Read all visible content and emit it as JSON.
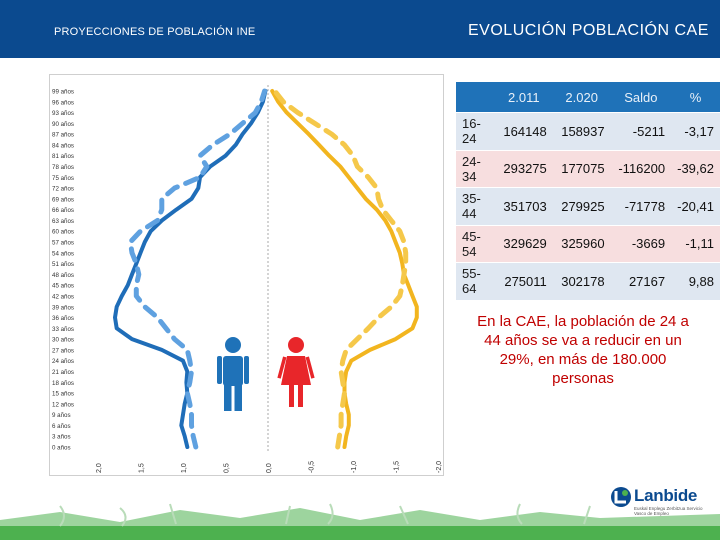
{
  "header": {
    "left_title": "PROYECCIONES DE POBLACIÓN INE",
    "right_title": "EVOLUCIÓN POBLACIÓN CAE"
  },
  "chart_data": {
    "type": "line",
    "title": "",
    "xlabel": "",
    "ylabel": "",
    "y_tick_labels": [
      "99 años",
      "96 años",
      "93 años",
      "90 años",
      "87 años",
      "84 años",
      "81 años",
      "78 años",
      "75 años",
      "72 años",
      "69 años",
      "66 años",
      "63 años",
      "60 años",
      "57 años",
      "54 años",
      "51 años",
      "48 años",
      "45 años",
      "42 años",
      "39 años",
      "36 años",
      "33 años",
      "30 años",
      "27 años",
      "24 años",
      "21 años",
      "18 años",
      "15 años",
      "12 años",
      "9 años",
      "6 años",
      "3 años",
      "0 años"
    ],
    "x_tick_labels": [
      "2,0",
      "1,5",
      "1,0",
      "0,5",
      "0,0",
      "-0,5",
      "-1,0",
      "-1,5",
      "-2,0"
    ],
    "xlim": [
      2.0,
      -2.0
    ],
    "ages": [
      0,
      3,
      6,
      9,
      12,
      15,
      18,
      21,
      24,
      27,
      30,
      33,
      36,
      39,
      42,
      45,
      48,
      51,
      54,
      57,
      60,
      63,
      66,
      69,
      72,
      75,
      78,
      81,
      84,
      87,
      90,
      93,
      96,
      99
    ],
    "series": [
      {
        "group": "men",
        "style": "solid",
        "color": "#1f6db8",
        "values": [
          0.95,
          0.98,
          1.02,
          1.0,
          0.98,
          0.95,
          0.96,
          0.95,
          1.0,
          1.25,
          1.6,
          1.78,
          1.8,
          1.78,
          1.72,
          1.65,
          1.6,
          1.55,
          1.5,
          1.45,
          1.38,
          1.25,
          1.08,
          0.9,
          0.82,
          0.8,
          0.68,
          0.5,
          0.38,
          0.3,
          0.2,
          0.12,
          0.06,
          0.03
        ]
      },
      {
        "group": "men",
        "style": "dashed",
        "color": "#5fa1e0",
        "values": [
          0.85,
          0.88,
          0.9,
          0.9,
          0.92,
          0.95,
          0.92,
          0.9,
          0.92,
          0.95,
          1.1,
          1.2,
          1.3,
          1.45,
          1.55,
          1.55,
          1.52,
          1.55,
          1.6,
          1.62,
          1.5,
          1.3,
          1.25,
          1.25,
          1.1,
          0.8,
          0.72,
          0.8,
          0.65,
          0.45,
          0.3,
          0.15,
          0.08,
          0.04
        ]
      },
      {
        "group": "women",
        "style": "solid",
        "color": "#f2b51f",
        "values": [
          -0.9,
          -0.92,
          -0.95,
          -0.95,
          -0.92,
          -0.9,
          -0.9,
          -0.92,
          -0.98,
          -1.2,
          -1.5,
          -1.7,
          -1.75,
          -1.75,
          -1.7,
          -1.65,
          -1.6,
          -1.58,
          -1.55,
          -1.5,
          -1.45,
          -1.38,
          -1.28,
          -1.15,
          -1.05,
          -0.95,
          -0.85,
          -0.72,
          -0.6,
          -0.48,
          -0.35,
          -0.22,
          -0.12,
          -0.05
        ]
      },
      {
        "group": "women",
        "style": "dashed",
        "color": "#f5c84a",
        "values": [
          -0.82,
          -0.84,
          -0.86,
          -0.86,
          -0.88,
          -0.9,
          -0.88,
          -0.86,
          -0.88,
          -0.92,
          -1.05,
          -1.18,
          -1.3,
          -1.45,
          -1.55,
          -1.58,
          -1.6,
          -1.62,
          -1.62,
          -1.6,
          -1.55,
          -1.45,
          -1.35,
          -1.3,
          -1.28,
          -1.18,
          -1.05,
          -1.0,
          -0.9,
          -0.75,
          -0.55,
          -0.35,
          -0.18,
          -0.08
        ]
      }
    ],
    "legend_icons": [
      "man-icon",
      "woman-icon"
    ],
    "colors": {
      "man_icon": "#1f72b8",
      "woman_icon": "#e8262a"
    }
  },
  "table": {
    "columns": [
      "",
      "2.011",
      "2.020",
      "Saldo",
      "%"
    ],
    "rows": [
      [
        "16-24",
        "164148",
        "158937",
        "-5211",
        "-3,17"
      ],
      [
        "24-34",
        "293275",
        "177075",
        "-116200",
        "-39,62"
      ],
      [
        "35-44",
        "351703",
        "279925",
        "-71778",
        "-20,41"
      ],
      [
        "45-54",
        "329629",
        "325960",
        "-3669",
        "-1,11"
      ],
      [
        "55-64",
        "275011",
        "302178",
        "27167",
        "9,88"
      ]
    ]
  },
  "statement": "En la CAE, la población de 24 a 44 años se va a reducir en un 29%, en más de 180.000 personas",
  "logo": {
    "name": "Lanbide",
    "tagline": "Euskal Enplegu Zerbitzua Servicio Vasco de Empleo"
  }
}
